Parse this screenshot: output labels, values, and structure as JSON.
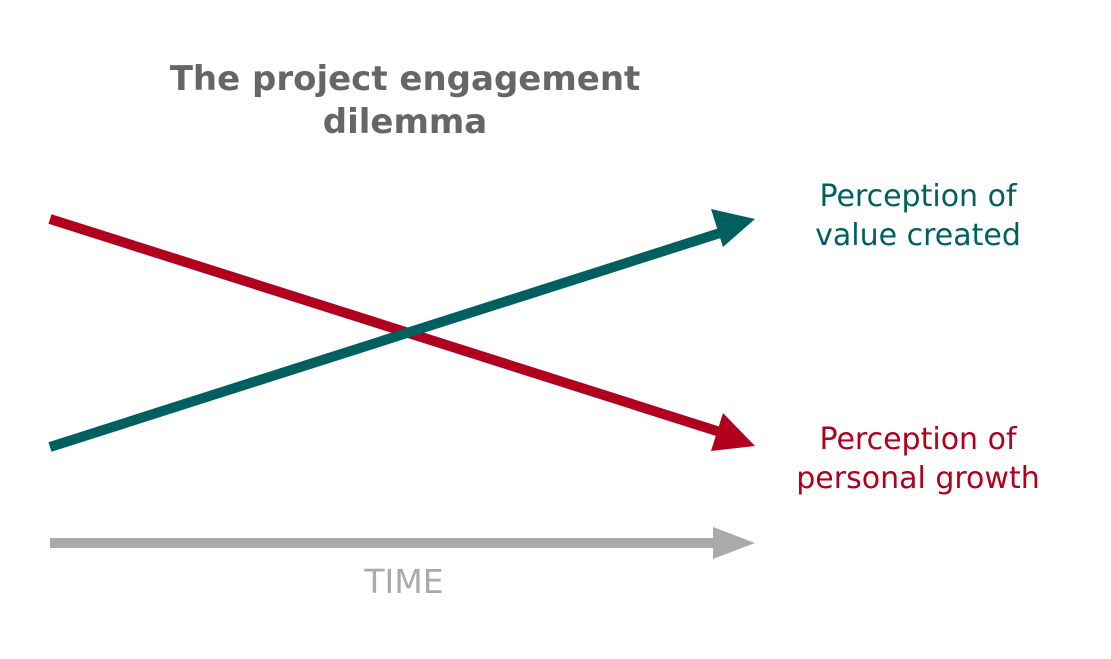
{
  "title": {
    "line1": "The project engagement",
    "line2": "dilemma"
  },
  "labels": {
    "value": {
      "line1": "Perception of",
      "line2": "value created"
    },
    "growth": {
      "line1": "Perception of",
      "line2": "personal growth"
    },
    "time": "TIME"
  },
  "colors": {
    "title": "#666666",
    "value": "#005f5f",
    "growth": "#b1001e",
    "time": "#aaaaaa"
  },
  "icons": {
    "value_arrow": "arrow-up-right-icon",
    "growth_arrow": "arrow-down-right-icon",
    "time_arrow": "arrow-right-icon"
  }
}
